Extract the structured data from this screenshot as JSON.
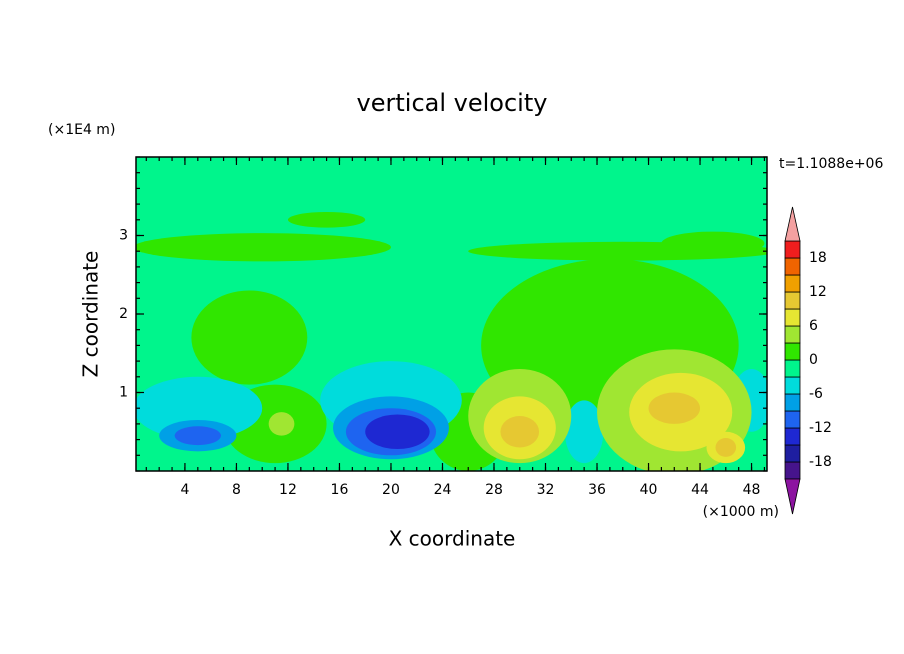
{
  "chart_data": {
    "type": "contour",
    "title": "vertical velocity",
    "x_label": "X coordinate",
    "y_label": "Z coordinate",
    "x_units": "(×1000 m)",
    "y_units": "(×1E4 m)",
    "time_label": "t=1.1088e+06",
    "xlim": [
      0.2,
      49.2
    ],
    "ylim": [
      0,
      4
    ],
    "xticks": [
      4,
      8,
      12,
      16,
      20,
      24,
      28,
      32,
      36,
      40,
      44,
      48
    ],
    "yticks": [
      1,
      2,
      3
    ],
    "minor_ticks": {
      "x": 1,
      "y": 0.2
    },
    "levels": [
      -21,
      -18,
      -15,
      -12,
      -9,
      -6,
      -3,
      0,
      3,
      6,
      9,
      12,
      15,
      18,
      21
    ],
    "level_ticks": [
      -18,
      -12,
      -6,
      0,
      6,
      12,
      18
    ],
    "colors": [
      "#8c14a0",
      "#46148c",
      "#1e1ea0",
      "#1e28d2",
      "#1e64f0",
      "#00a0e6",
      "#00dcdc",
      "#00f58c",
      "#30e600",
      "#a0e632",
      "#e6e632",
      "#e6c832",
      "#f0a000",
      "#f06400",
      "#f01e1e",
      "#f4a0a0"
    ],
    "background_value": -1,
    "regions": [
      {
        "x": 10,
        "z": 2.85,
        "rx": 10,
        "rz": 0.18,
        "value": 1.5
      },
      {
        "x": 38,
        "z": 2.8,
        "rx": 12,
        "rz": 0.12,
        "value": 1.5
      },
      {
        "x": 45,
        "z": 2.9,
        "rx": 4,
        "rz": 0.15,
        "value": 1.5
      },
      {
        "x": 15,
        "z": 3.2,
        "rx": 3,
        "rz": 0.1,
        "value": 1.5
      },
      {
        "x": 37,
        "z": 1.6,
        "rx": 10,
        "rz": 1.1,
        "value": 1.5
      },
      {
        "x": 9,
        "z": 1.7,
        "rx": 4.5,
        "rz": 0.6,
        "value": 1.5
      },
      {
        "x": 11,
        "z": 0.6,
        "rx": 4,
        "rz": 0.5,
        "value": 1.5
      },
      {
        "x": 26,
        "z": 0.5,
        "rx": 3,
        "rz": 0.5,
        "value": 1.5
      },
      {
        "x": 5,
        "z": 0.8,
        "rx": 5,
        "rz": 0.4,
        "value": -4.5
      },
      {
        "x": 20,
        "z": 0.9,
        "rx": 5.5,
        "rz": 0.5,
        "value": -4.5
      },
      {
        "x": 35,
        "z": 0.5,
        "rx": 1.5,
        "rz": 0.4,
        "value": -4.5
      },
      {
        "x": 48,
        "z": 0.9,
        "rx": 1.5,
        "rz": 0.4,
        "value": -4.5
      },
      {
        "x": 20,
        "z": 0.55,
        "rx": 4.5,
        "rz": 0.4,
        "value": -7.5
      },
      {
        "x": 20,
        "z": 0.5,
        "rx": 3.5,
        "rz": 0.3,
        "value": -10.5
      },
      {
        "x": 20.5,
        "z": 0.5,
        "rx": 2.5,
        "rz": 0.22,
        "value": -13.5
      },
      {
        "x": 5,
        "z": 0.45,
        "rx": 3,
        "rz": 0.2,
        "value": -7.5
      },
      {
        "x": 5,
        "z": 0.45,
        "rx": 1.8,
        "rz": 0.12,
        "value": -10.5
      },
      {
        "x": 30,
        "z": 0.7,
        "rx": 4,
        "rz": 0.6,
        "value": 4.5
      },
      {
        "x": 42,
        "z": 0.75,
        "rx": 6,
        "rz": 0.8,
        "value": 4.5
      },
      {
        "x": 11.5,
        "z": 0.6,
        "rx": 1,
        "rz": 0.15,
        "value": 4.5
      },
      {
        "x": 30,
        "z": 0.55,
        "rx": 2.8,
        "rz": 0.4,
        "value": 7.5
      },
      {
        "x": 42.5,
        "z": 0.75,
        "rx": 4,
        "rz": 0.5,
        "value": 7.5
      },
      {
        "x": 46,
        "z": 0.3,
        "rx": 1.5,
        "rz": 0.2,
        "value": 7.5
      },
      {
        "x": 30,
        "z": 0.5,
        "rx": 1.5,
        "rz": 0.2,
        "value": 10.5
      },
      {
        "x": 42,
        "z": 0.8,
        "rx": 2,
        "rz": 0.2,
        "value": 10.5
      },
      {
        "x": 46,
        "z": 0.3,
        "rx": 0.8,
        "rz": 0.12,
        "value": 10.5
      }
    ]
  }
}
